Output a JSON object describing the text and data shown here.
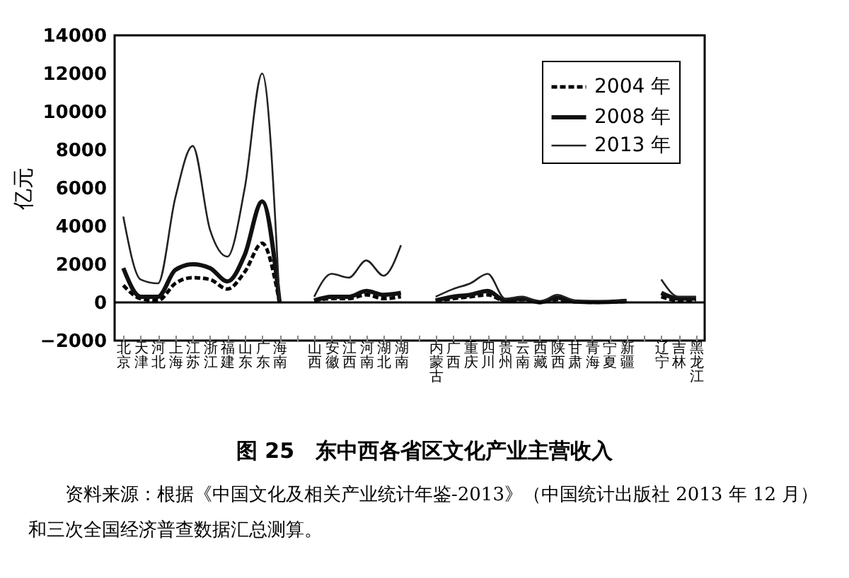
{
  "chart_data": {
    "type": "line",
    "title": "图 25　东中西各省区文化产业主营收入",
    "ylabel": "亿元",
    "annotations": [
      "资料来源：根据《中国文化及相关产业统计年鉴-2013》（中国统计出版社 2013 年 12 月）和三次全国经济普查数据汇总测算。"
    ],
    "categories": [
      "北京",
      "天津",
      "河北",
      "上海",
      "江苏",
      "浙江",
      "福建",
      "山东",
      "广东",
      "海南",
      null,
      "山西",
      "安徽",
      "江西",
      "河南",
      "湖北",
      "湖南",
      null,
      "内蒙古",
      "广西",
      "重庆",
      "四川",
      "贵州",
      "云南",
      "西藏",
      "陕西",
      "甘肃",
      "青海",
      "宁夏",
      "新疆",
      null,
      "辽宁",
      "吉林",
      "黑龙江"
    ],
    "series": [
      {
        "name": "2004 年",
        "color": "#000000",
        "line_style": "dashed",
        "values": [
          900,
          200,
          100,
          1000,
          1300,
          1200,
          700,
          1600,
          3100,
          30,
          null,
          100,
          200,
          200,
          400,
          200,
          300,
          null,
          80,
          200,
          300,
          400,
          80,
          150,
          10,
          150,
          40,
          10,
          20,
          50,
          null,
          300,
          100,
          150
        ]
      },
      {
        "name": "2008 年",
        "color": "#111111",
        "line_style": "solid",
        "values": [
          1800,
          300,
          300,
          1700,
          2000,
          1800,
          1100,
          2500,
          5300,
          50,
          null,
          100,
          300,
          300,
          600,
          400,
          500,
          null,
          100,
          300,
          400,
          600,
          100,
          200,
          10,
          250,
          50,
          20,
          30,
          80,
          null,
          500,
          200,
          200
        ]
      },
      {
        "name": "2013 年",
        "color": "#222222",
        "line_style": "solid",
        "values": [
          4500,
          1200,
          1000,
          5500,
          8200,
          3800,
          2400,
          6000,
          12000,
          100,
          null,
          300,
          1500,
          1300,
          2200,
          1400,
          3000,
          null,
          300,
          700,
          1000,
          1500,
          200,
          300,
          20,
          400,
          100,
          30,
          50,
          100,
          null,
          1200,
          300,
          300
        ]
      }
    ],
    "ylim": [
      -2000,
      14000
    ],
    "yticks": [
      -2000,
      0,
      2000,
      4000,
      6000,
      8000,
      10000,
      12000,
      14000
    ],
    "ref_lines": [
      {
        "axis": "y",
        "value": 0,
        "color": "#000000"
      }
    ],
    "grid": false,
    "legend": "top right"
  }
}
